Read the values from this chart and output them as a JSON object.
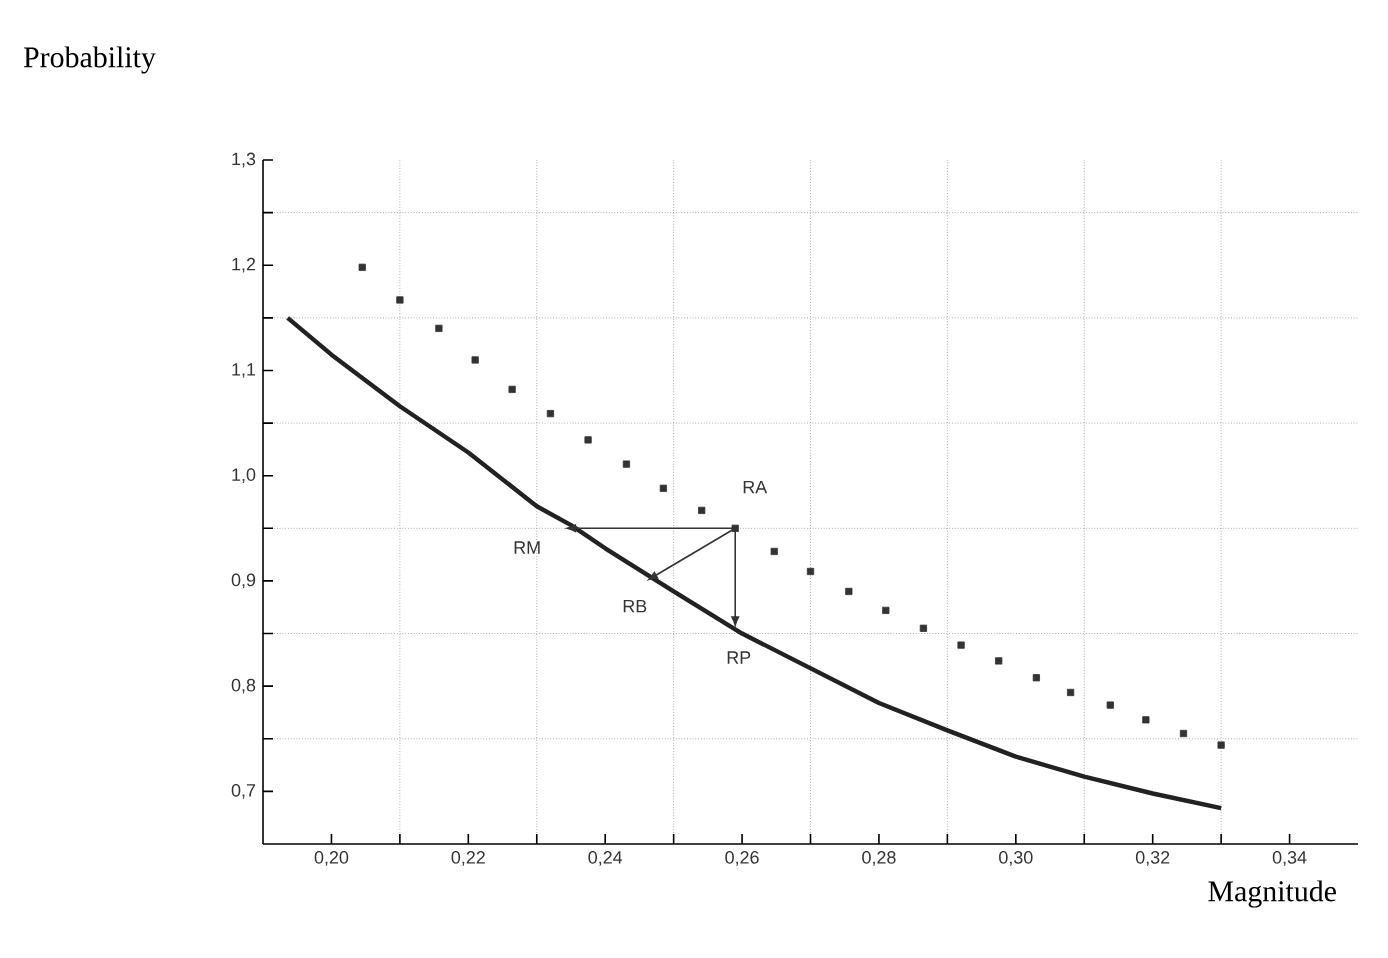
{
  "chart_data": {
    "type": "line",
    "title": "Probability",
    "xlabel": "Magnitude",
    "xlim": [
      0.19,
      0.35
    ],
    "ylim": [
      0.65,
      1.3
    ],
    "xticks": [
      {
        "value": 0.2,
        "label": "0,20"
      },
      {
        "value": 0.21,
        "label": null
      },
      {
        "value": 0.22,
        "label": "0,22"
      },
      {
        "value": 0.23,
        "label": null
      },
      {
        "value": 0.24,
        "label": "0,24"
      },
      {
        "value": 0.25,
        "label": null
      },
      {
        "value": 0.26,
        "label": "0,26"
      },
      {
        "value": 0.27,
        "label": null
      },
      {
        "value": 0.28,
        "label": "0,28"
      },
      {
        "value": 0.29,
        "label": null
      },
      {
        "value": 0.3,
        "label": "0,30"
      },
      {
        "value": 0.31,
        "label": null
      },
      {
        "value": 0.32,
        "label": "0,32"
      },
      {
        "value": 0.33,
        "label": null
      },
      {
        "value": 0.34,
        "label": "0,34"
      }
    ],
    "yticks": [
      {
        "value": 0.7,
        "label": "0,7"
      },
      {
        "value": 0.75,
        "label": null
      },
      {
        "value": 0.8,
        "label": "0,8"
      },
      {
        "value": 0.85,
        "label": null
      },
      {
        "value": 0.9,
        "label": "0,9"
      },
      {
        "value": 0.95,
        "label": null
      },
      {
        "value": 1.0,
        "label": "1,0"
      },
      {
        "value": 1.05,
        "label": null
      },
      {
        "value": 1.1,
        "label": "1,1"
      },
      {
        "value": 1.15,
        "label": null
      },
      {
        "value": 1.2,
        "label": "1,2"
      },
      {
        "value": 1.25,
        "label": null
      },
      {
        "value": 1.3,
        "label": "1,3"
      }
    ],
    "grid": true,
    "series": [
      {
        "color": "#222222",
        "line_style": "solid",
        "marker": "none",
        "x": [
          0.1936,
          0.2,
          0.21,
          0.22,
          0.23,
          0.235,
          0.24,
          0.25,
          0.26,
          0.27,
          0.28,
          0.29,
          0.3,
          0.31,
          0.32,
          0.33
        ],
        "values": [
          1.15,
          1.115,
          1.066,
          1.022,
          0.971,
          0.953,
          0.931,
          0.89,
          0.85,
          0.817,
          0.784,
          0.758,
          0.733,
          0.714,
          0.698,
          0.684
        ]
      },
      {
        "type": "scatter",
        "color": "#333333",
        "marker": "square",
        "x": [
          0.2045,
          0.21,
          0.2157,
          0.221,
          0.2264,
          0.232,
          0.2375,
          0.2431,
          0.2485,
          0.2541,
          0.259,
          0.2647,
          0.27,
          0.2756,
          0.281,
          0.2865,
          0.292,
          0.2975,
          0.303,
          0.308,
          0.3138,
          0.319,
          0.3245,
          0.33
        ],
        "values": [
          1.198,
          1.167,
          1.14,
          1.11,
          1.082,
          1.059,
          1.034,
          1.011,
          0.988,
          0.967,
          0.95,
          0.928,
          0.909,
          0.89,
          0.872,
          0.855,
          0.839,
          0.824,
          0.808,
          0.794,
          0.782,
          0.768,
          0.755,
          0.744
        ]
      }
    ],
    "annotations": [
      {
        "text": "RA",
        "x": 0.259,
        "y": 0.95
      },
      {
        "text": "RM",
        "x": 0.234,
        "y": 0.95
      },
      {
        "text": "RB",
        "x": 0.246,
        "y": 0.9
      },
      {
        "text": "RP",
        "x": 0.259,
        "y": 0.855
      }
    ]
  }
}
